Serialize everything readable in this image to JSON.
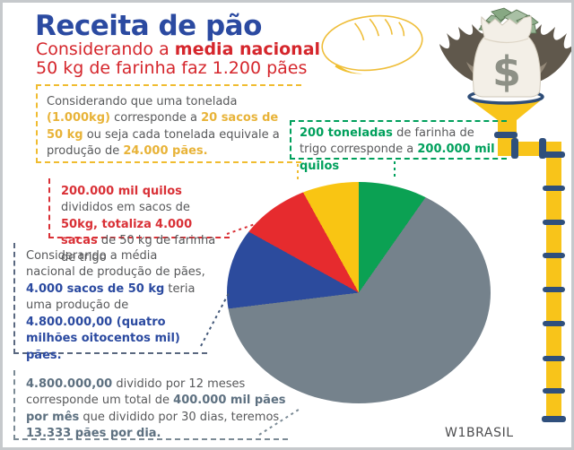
{
  "header": {
    "title": "Receita de pão",
    "subtitle_prefix": "Considerando a ",
    "subtitle_bold": "media nacional",
    "subtitle_line2": "50 kg de farinha faz 1.200 pães"
  },
  "notes": [
    {
      "id": "tonelada-paes",
      "accent": "#e8b338",
      "segments": [
        {
          "t": "Considerando que uma tonelada "
        },
        {
          "t": "(1.000kg)",
          "b": 1
        },
        {
          "t": " corresponde a "
        },
        {
          "t": "20 sacos de 50 kg",
          "b": 1
        },
        {
          "t": " ou seja cada tonelada equivale a produção de "
        },
        {
          "t": "24.000 pães.",
          "b": 1
        }
      ]
    },
    {
      "id": "toneladas-quilos",
      "accent": "#00a05c",
      "segments": [
        {
          "t": "200 toneladas",
          "b": 1
        },
        {
          "t": " de farinha de trigo corresponde a "
        },
        {
          "t": "200.000 mil quilos",
          "b": 1
        }
      ]
    },
    {
      "id": "quilos-sacas",
      "accent": "#d93036",
      "segments": [
        {
          "t": "200.000 mil quilos",
          "b": 1
        },
        {
          "t": " divididos em sacos de "
        },
        {
          "t": "50kg, totaliza",
          "b": 1
        },
        {
          "t": " "
        },
        {
          "t": "4.000 sacas",
          "b": 1
        },
        {
          "t": " de 50 kg de farinha de trigo"
        }
      ]
    },
    {
      "id": "producao-total",
      "accent": "#2b4aa0",
      "segments": [
        {
          "t": "Considerando a média nacional de produção de pães, "
        },
        {
          "t": "4.000 sacos de 50 kg",
          "b": 1
        },
        {
          "t": " teria uma produção de "
        },
        {
          "t": "4.800.000,00 (quatro milhões oitocentos mil) pães.",
          "b": 1
        }
      ]
    },
    {
      "id": "producao-mensal-diaria",
      "accent": "#5d7080",
      "segments": [
        {
          "t": "4.800.000,00",
          "b": 1
        },
        {
          "t": " dividido por 12 meses corresponde um total de "
        },
        {
          "t": "400.000 mil pães por mês",
          "b": 1
        },
        {
          "t": " que dividido por 30 dias, teremos "
        },
        {
          "t": "13.333 pães por dia.",
          "b": 1
        }
      ]
    }
  ],
  "chart_data": {
    "type": "pie",
    "title": "Receita de pão",
    "legend_position": "none",
    "data_labels": false,
    "slices": [
      {
        "linked_note": "toneladas-quilos",
        "color": "#0ba153",
        "start_deg": 0,
        "end_deg": 35,
        "percent": 9.7
      },
      {
        "linked_note": "producao-mensal-diaria",
        "color": "#75828c",
        "start_deg": 35,
        "end_deg": 263,
        "percent": 63.3
      },
      {
        "linked_note": "producao-total",
        "color": "#2c4b9d",
        "start_deg": 263,
        "end_deg": 299,
        "percent": 10.0
      },
      {
        "linked_note": "quilos-sacas",
        "color": "#e62b2e",
        "start_deg": 299,
        "end_deg": 331,
        "percent": 8.9
      },
      {
        "linked_note": "tonelada-paes",
        "color": "#f9c513",
        "start_deg": 331,
        "end_deg": 360,
        "percent": 8.1
      }
    ]
  },
  "icons": {
    "bread": "bread-loaf-icon",
    "money_bag": "money-bag-dollar-icon",
    "wings": "bird-wings-icon",
    "funnel": "funnel-icon",
    "pipe": "pipe-icon",
    "dollar_sign": "$"
  },
  "colors": {
    "title_blue": "#2b4aa1",
    "subtitle_red": "#d5262c",
    "body_gray": "#58595b",
    "pipe_yellow": "#f8c41a",
    "pipe_joint_navy": "#2f4f7c",
    "frame_gray": "#c6c9cc"
  },
  "credit": "W1BRASIL"
}
